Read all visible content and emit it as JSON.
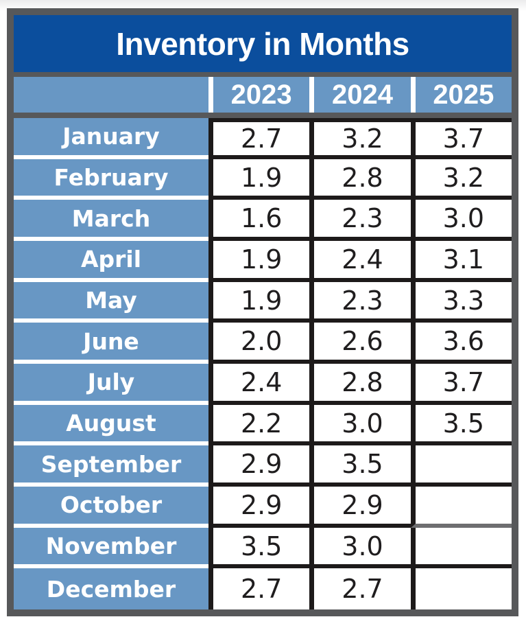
{
  "table": {
    "title": "Inventory in Months",
    "columns": [
      "2023",
      "2024",
      "2025"
    ],
    "rows": [
      {
        "month": "January",
        "values": [
          "2.7",
          "3.2",
          "3.7"
        ]
      },
      {
        "month": "February",
        "values": [
          "1.9",
          "2.8",
          "3.2"
        ]
      },
      {
        "month": "March",
        "values": [
          "1.6",
          "2.3",
          "3.0"
        ]
      },
      {
        "month": "April",
        "values": [
          "1.9",
          "2.4",
          "3.1"
        ]
      },
      {
        "month": "May",
        "values": [
          "1.9",
          "2.3",
          "3.3"
        ]
      },
      {
        "month": "June",
        "values": [
          "2.0",
          "2.6",
          "3.6"
        ]
      },
      {
        "month": "July",
        "values": [
          "2.4",
          "2.8",
          "3.7"
        ]
      },
      {
        "month": "August",
        "values": [
          "2.2",
          "3.0",
          "3.5"
        ]
      },
      {
        "month": "September",
        "values": [
          "2.9",
          "3.5",
          ""
        ]
      },
      {
        "month": "October",
        "values": [
          "2.9",
          "2.9",
          ""
        ]
      },
      {
        "month": "November",
        "values": [
          "3.5",
          "3.0",
          ""
        ]
      },
      {
        "month": "December",
        "values": [
          "2.7",
          "2.7",
          ""
        ]
      }
    ],
    "colors": {
      "title_bg": "#0b4e9d",
      "header_bg": "#6897c4",
      "frame": "#57585a",
      "cell_border": "#1d1a1a",
      "header_text": "#ffffff",
      "value_text": "#1f1d1e"
    }
  },
  "chart_data": {
    "type": "table",
    "title": "Inventory in Months",
    "categories": [
      "January",
      "February",
      "March",
      "April",
      "May",
      "June",
      "July",
      "August",
      "September",
      "October",
      "November",
      "December"
    ],
    "series": [
      {
        "name": "2023",
        "values": [
          2.7,
          1.9,
          1.6,
          1.9,
          1.9,
          2.0,
          2.4,
          2.2,
          2.9,
          2.9,
          3.5,
          2.7
        ]
      },
      {
        "name": "2024",
        "values": [
          3.2,
          2.8,
          2.3,
          2.4,
          2.3,
          2.6,
          2.8,
          3.0,
          3.5,
          2.9,
          3.0,
          2.7
        ]
      },
      {
        "name": "2025",
        "values": [
          3.7,
          3.2,
          3.0,
          3.1,
          3.3,
          3.6,
          3.7,
          3.5,
          null,
          null,
          null,
          null
        ]
      }
    ],
    "legend_position": "none",
    "grid": true
  }
}
